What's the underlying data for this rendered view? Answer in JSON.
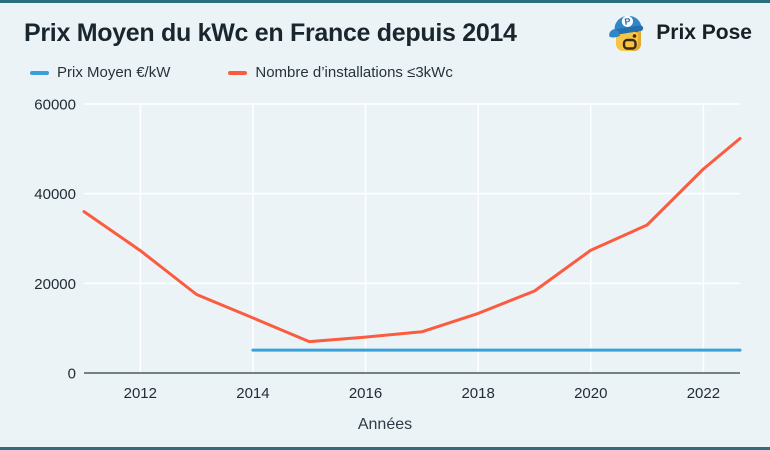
{
  "header": {
    "title": "Prix Moyen du kWc en France depuis 2014",
    "brand": "Prix Pose"
  },
  "legend": {
    "items": [
      {
        "label": "Prix Moyen €/kW",
        "color": "#38a1da"
      },
      {
        "label": "Nombre d’installations ≤3kWc",
        "color": "#fb5c3f"
      }
    ]
  },
  "chart_data": {
    "type": "line",
    "title": "Prix Moyen du kWc en France depuis 2014",
    "xlabel": "Années",
    "ylabel": "",
    "xlim": [
      2011,
      2022.65
    ],
    "ylim": [
      0,
      60000
    ],
    "x_ticks": [
      2012,
      2014,
      2016,
      2018,
      2020,
      2022
    ],
    "y_ticks": [
      0,
      20000,
      40000,
      60000
    ],
    "grid": true,
    "legend_position": "top-left",
    "series": [
      {
        "name": "Prix Moyen €/kW",
        "color": "#38a1da",
        "points": [
          [
            2014,
            5100
          ],
          [
            2022.65,
            5100
          ]
        ]
      },
      {
        "name": "Nombre d’installations ≤3kWc",
        "color": "#fb5c3f",
        "points": [
          [
            2011,
            36000
          ],
          [
            2012,
            27300
          ],
          [
            2013,
            17500
          ],
          [
            2014,
            12300
          ],
          [
            2015,
            7000
          ],
          [
            2016,
            8000
          ],
          [
            2017,
            9200
          ],
          [
            2018,
            13300
          ],
          [
            2019,
            18300
          ],
          [
            2020,
            27400
          ],
          [
            2021,
            33000
          ],
          [
            2022,
            45500
          ],
          [
            2022.65,
            52300
          ]
        ]
      }
    ]
  },
  "colors": {
    "background": "#ecf3f7",
    "gridline": "#ffffff",
    "axis": "#4a5a63",
    "tick_label": "#212d36",
    "axis_title": "#2e3c45",
    "edge_border": "#2a6f7e"
  }
}
